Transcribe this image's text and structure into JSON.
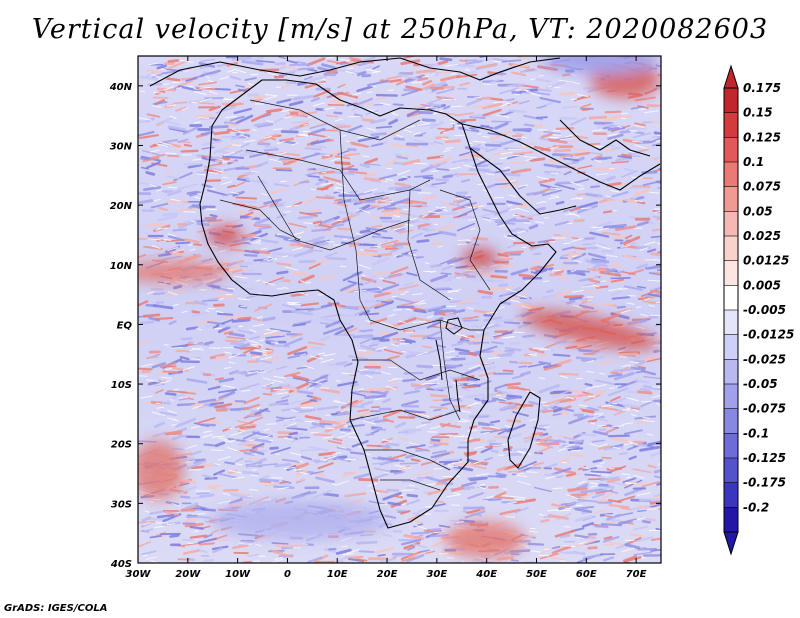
{
  "title": "Vertical velocity [m/s] at 250hPa, VT: 2020082603",
  "credit": "GrADS: IGES/COLA",
  "map": {
    "lon_ticks": [
      "30W",
      "20W",
      "10W",
      "0",
      "10E",
      "20E",
      "30E",
      "40E",
      "50E",
      "60E",
      "70E"
    ],
    "lat_ticks": [
      "40N",
      "30N",
      "20N",
      "10N",
      "EQ",
      "10S",
      "20S",
      "30S",
      "40S"
    ],
    "lon_range": [
      -30,
      75
    ],
    "lat_range": [
      -40,
      45
    ]
  },
  "colorbar": {
    "labels": [
      "0.175",
      "0.15",
      "0.125",
      "0.1",
      "0.075",
      "0.05",
      "0.025",
      "0.0125",
      "0.005",
      "-0.005",
      "-0.0125",
      "-0.025",
      "-0.05",
      "-0.075",
      "-0.1",
      "-0.125",
      "-0.175",
      "-0.2"
    ],
    "colors": [
      "#c0272d",
      "#d23c3c",
      "#df5a58",
      "#e97a76",
      "#f09a94",
      "#f6b8b2",
      "#fad2cc",
      "#fde6e2",
      "#ffffff",
      "#e4e4fb",
      "#cfd0f7",
      "#b8b9f1",
      "#a0a1ea",
      "#8788e2",
      "#6d6dd8",
      "#5453cc",
      "#3a37be",
      "#2417a8"
    ]
  }
}
